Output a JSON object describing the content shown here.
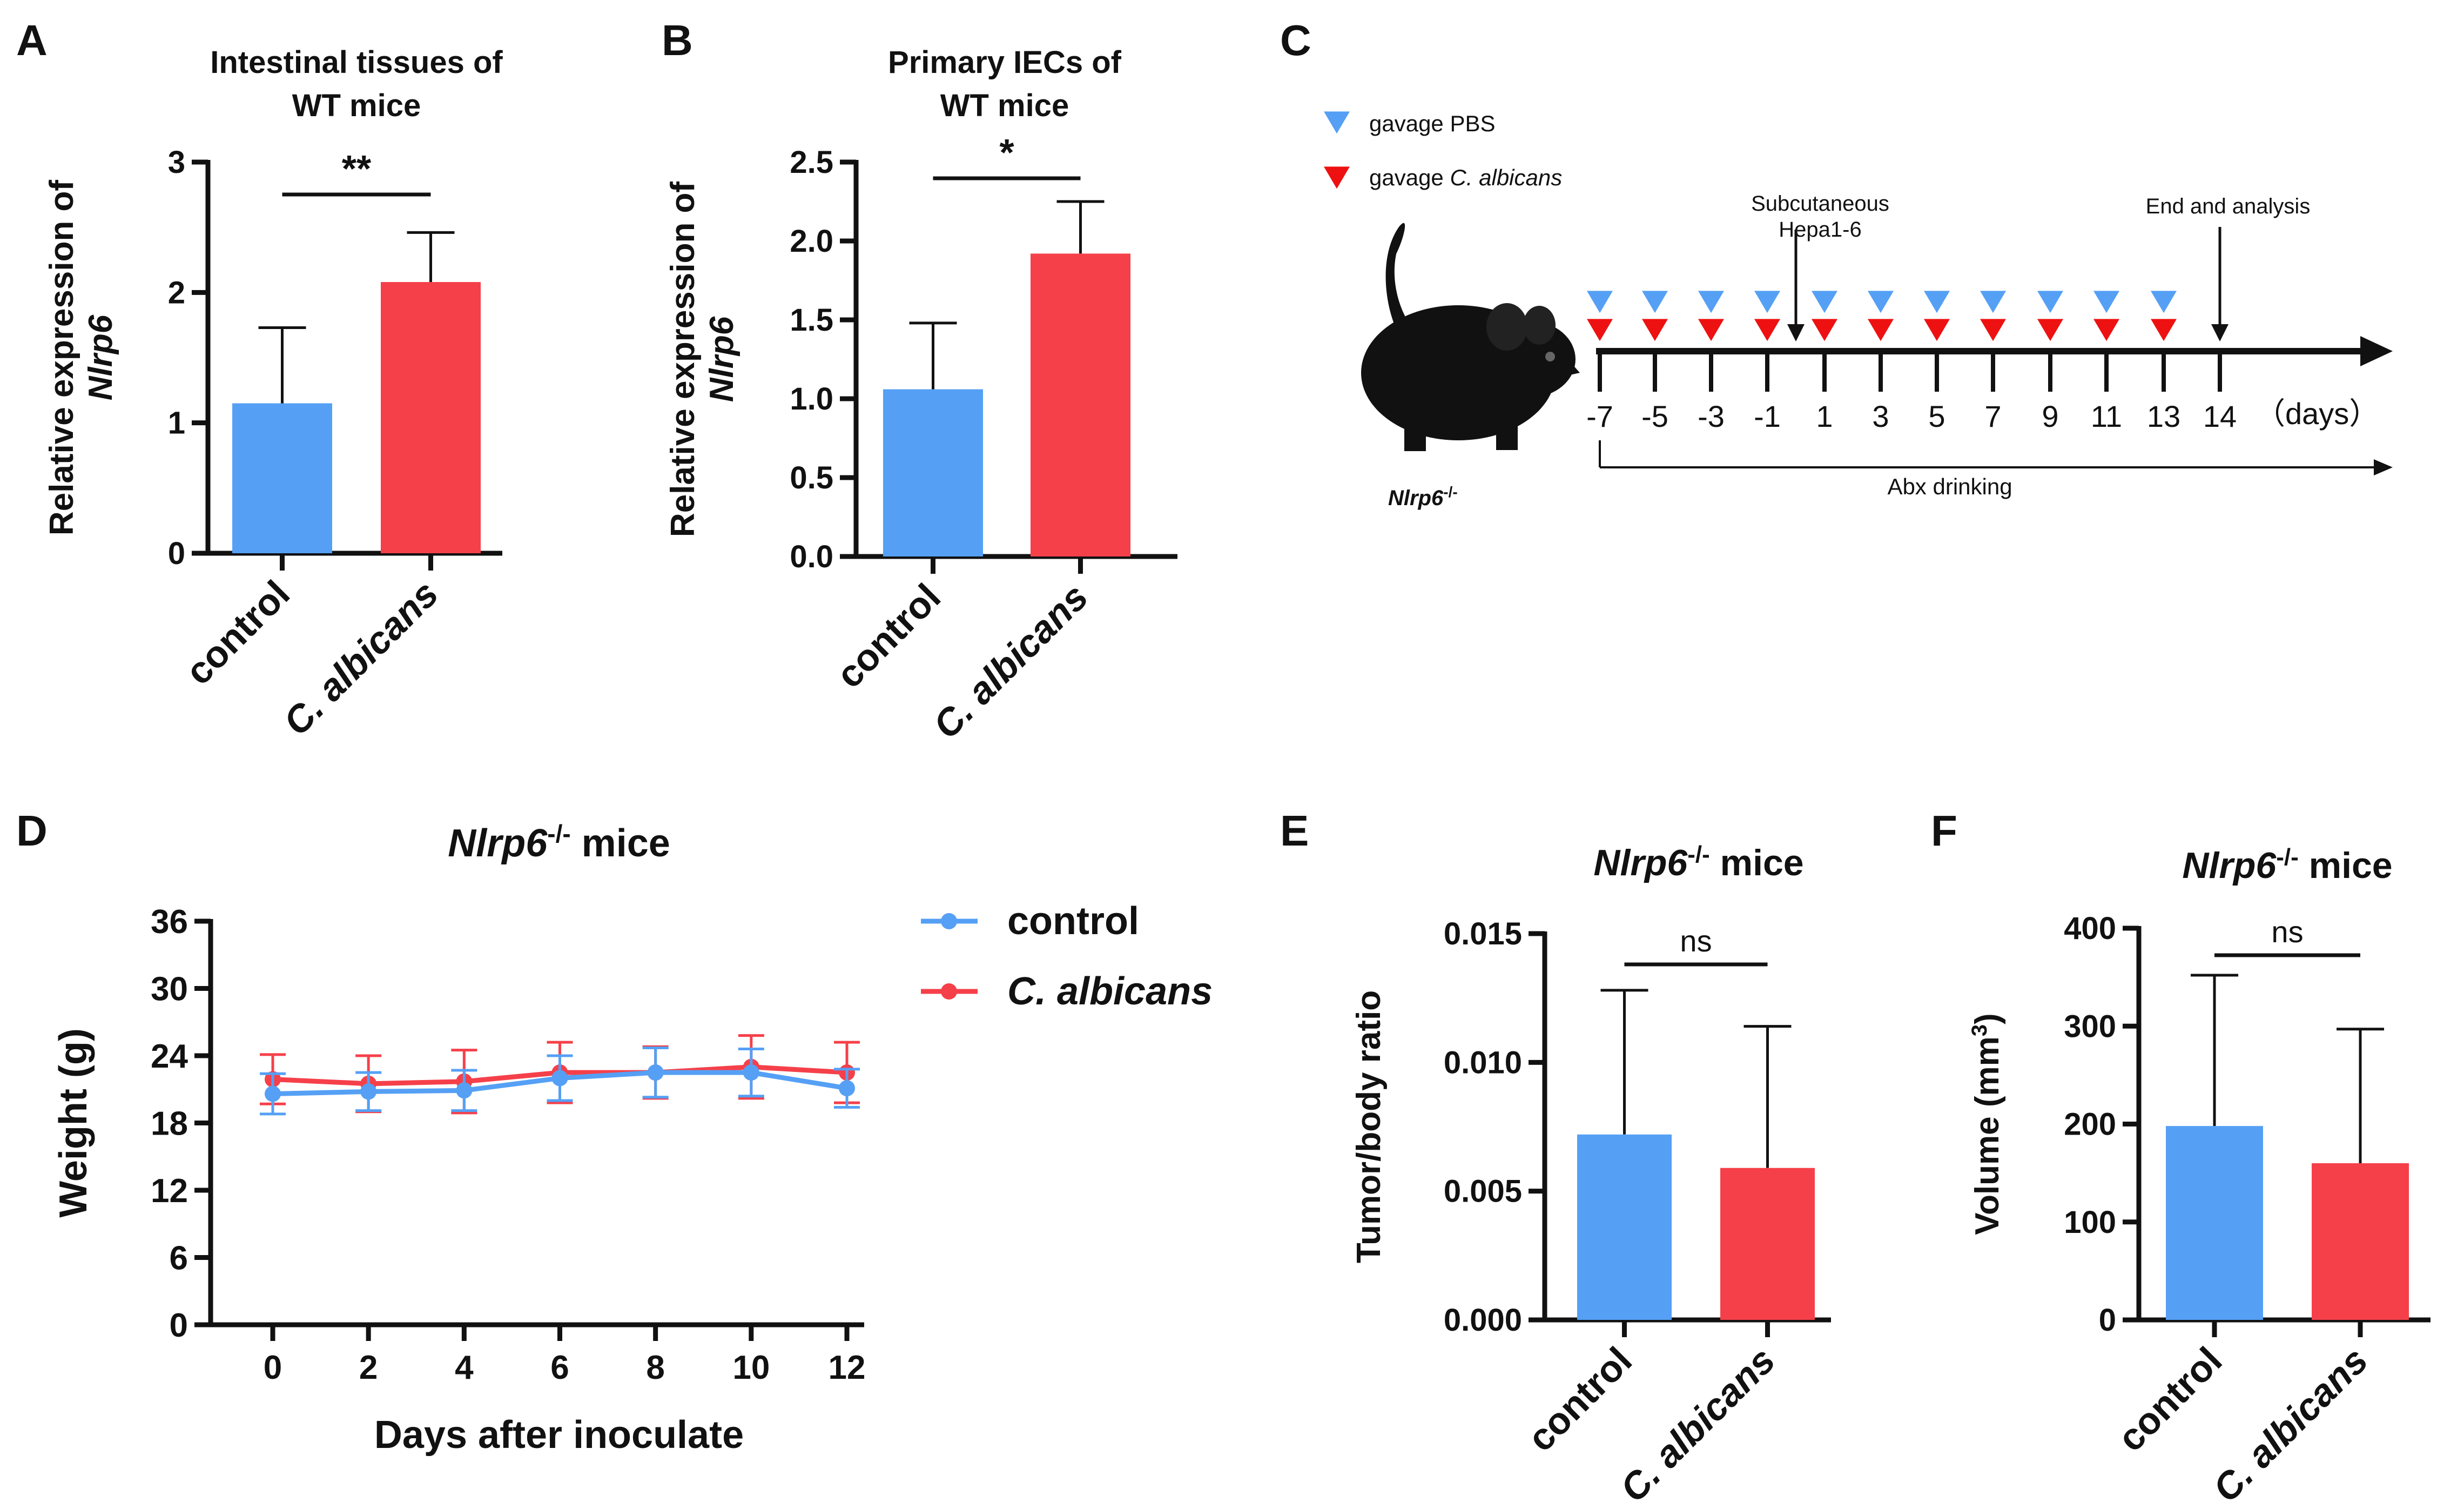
{
  "panels": {
    "A": "A",
    "B": "B",
    "C": "C",
    "D": "D",
    "E": "E",
    "F": "F"
  },
  "colors": {
    "control": "#55a0f5",
    "albicans": "#f5404a",
    "ink": "#111111"
  },
  "chart_data": [
    {
      "id": "A",
      "type": "bar",
      "title_lines": [
        "Intestinal tissues of",
        "WT mice"
      ],
      "ylabel_lines": [
        "Relative expression of",
        "Nlrp6"
      ],
      "categories": [
        "control",
        "C. albicans"
      ],
      "values": [
        1.15,
        2.08
      ],
      "errors": [
        0.58,
        0.38
      ],
      "ylim": [
        0,
        3
      ],
      "yticks": [
        0,
        1,
        2,
        3
      ],
      "ytick_labels": [
        "0",
        "1",
        "2",
        "3"
      ],
      "significance": "**"
    },
    {
      "id": "B",
      "type": "bar",
      "title_lines": [
        "Primary IECs of",
        "WT mice"
      ],
      "ylabel_lines": [
        "Relative expression of",
        "Nlrp6"
      ],
      "categories": [
        "control",
        "C. albicans"
      ],
      "values": [
        1.06,
        1.92
      ],
      "errors": [
        0.42,
        0.33
      ],
      "ylim": [
        0,
        2.5
      ],
      "yticks": [
        0,
        0.5,
        1.0,
        1.5,
        2.0,
        2.5
      ],
      "ytick_labels": [
        "0.0",
        "0.5",
        "1.0",
        "1.5",
        "2.0",
        "2.5"
      ],
      "significance": "*"
    },
    {
      "id": "D",
      "type": "line",
      "title": "Nlrp6",
      "title_sup": "-/-",
      "title_suffix": " mice",
      "xlabel": "Days after inoculate",
      "ylabel": "Weight (g)",
      "x": [
        0,
        2,
        4,
        6,
        8,
        10,
        12
      ],
      "xtick_labels": [
        "0",
        "2",
        "4",
        "6",
        "8",
        "10",
        "12"
      ],
      "ylim": [
        0,
        36
      ],
      "yticks": [
        0,
        6,
        12,
        18,
        24,
        30,
        36
      ],
      "ytick_labels": [
        "0",
        "6",
        "12",
        "18",
        "24",
        "30",
        "36"
      ],
      "series": [
        {
          "name": "control",
          "values": [
            20.6,
            20.8,
            20.9,
            22.0,
            22.5,
            22.5,
            21.1
          ],
          "errors": [
            1.8,
            1.7,
            1.8,
            2.0,
            2.2,
            2.1,
            1.7
          ]
        },
        {
          "name": "C. albicans",
          "values": [
            21.9,
            21.5,
            21.7,
            22.5,
            22.5,
            23.0,
            22.5
          ],
          "errors": [
            2.2,
            2.5,
            2.8,
            2.7,
            2.3,
            2.8,
            2.7
          ]
        }
      ]
    },
    {
      "id": "E",
      "type": "bar",
      "title": "Nlrp6",
      "title_sup": "-/-",
      "title_suffix": " mice",
      "ylabel": "Tumor/body ratio",
      "categories": [
        "control",
        "C. albicans"
      ],
      "values": [
        0.0072,
        0.0059
      ],
      "errors": [
        0.0056,
        0.0055
      ],
      "ylim": [
        0,
        0.015
      ],
      "yticks": [
        0,
        0.005,
        0.01,
        0.015
      ],
      "ytick_labels": [
        "0.000",
        "0.005",
        "0.010",
        "0.015"
      ],
      "significance": "ns"
    },
    {
      "id": "F",
      "type": "bar",
      "title": "Nlrp6",
      "title_sup": "-/-",
      "title_suffix": " mice",
      "ylabel": "Volume (mm",
      "ylabel_sup": "3",
      "ylabel_suffix": ")",
      "categories": [
        "control",
        "C. albicans"
      ],
      "values": [
        198,
        160
      ],
      "errors": [
        154,
        137
      ],
      "ylim": [
        0,
        400
      ],
      "yticks": [
        0,
        100,
        200,
        300,
        400
      ],
      "ytick_labels": [
        "0",
        "100",
        "200",
        "300",
        "400"
      ],
      "significance": "ns"
    }
  ],
  "timeline": {
    "legend": [
      {
        "label": "gavage PBS",
        "color": "#55a0f5"
      },
      {
        "label": "gavage ",
        "label_italic": "C. albicans",
        "color": "#ee1111"
      }
    ],
    "days": [
      "-7",
      "-5",
      "-3",
      "-1",
      "1",
      "3",
      "5",
      "7",
      "9",
      "11",
      "13",
      "14"
    ],
    "days_unit": "（days）",
    "mouse_label": "Nlrp6",
    "mouse_label_sup": "-/-",
    "event_subq_lines": [
      "Subcutaneous",
      "Hepa1-6"
    ],
    "event_end": "End and analysis",
    "abx": "Abx drinking"
  }
}
